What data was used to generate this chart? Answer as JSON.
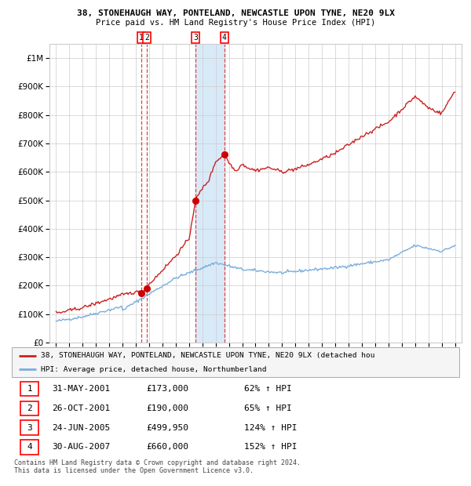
{
  "title1": "38, STONEHAUGH WAY, PONTELAND, NEWCASTLE UPON TYNE, NE20 9LX",
  "title2": "Price paid vs. HM Land Registry's House Price Index (HPI)",
  "sale_dates_num": [
    2001.41,
    2001.82,
    2005.48,
    2007.66
  ],
  "sale_prices": [
    173000,
    190000,
    499950,
    660000
  ],
  "sale_labels": [
    "1",
    "2",
    "3",
    "4"
  ],
  "hpi_color": "#7aaddc",
  "price_color": "#cc2222",
  "marker_color": "#cc0000",
  "vline_color": "#dd4444",
  "shade_color": "#d8eaf8",
  "background_color": "#ffffff",
  "grid_color": "#cccccc",
  "legend_line1": "38, STONEHAUGH WAY, PONTELAND, NEWCASTLE UPON TYNE, NE20 9LX (detached hou",
  "legend_line2": "HPI: Average price, detached house, Northumberland",
  "table_rows": [
    [
      "1",
      "31-MAY-2001",
      "£173,000",
      "62% ↑ HPI"
    ],
    [
      "2",
      "26-OCT-2001",
      "£190,000",
      "65% ↑ HPI"
    ],
    [
      "3",
      "24-JUN-2005",
      "£499,950",
      "124% ↑ HPI"
    ],
    [
      "4",
      "30-AUG-2007",
      "£660,000",
      "152% ↑ HPI"
    ]
  ],
  "footnote": "Contains HM Land Registry data © Crown copyright and database right 2024.\nThis data is licensed under the Open Government Licence v3.0.",
  "ylim": [
    0,
    1050000
  ],
  "xlim": [
    1994.5,
    2025.5
  ]
}
